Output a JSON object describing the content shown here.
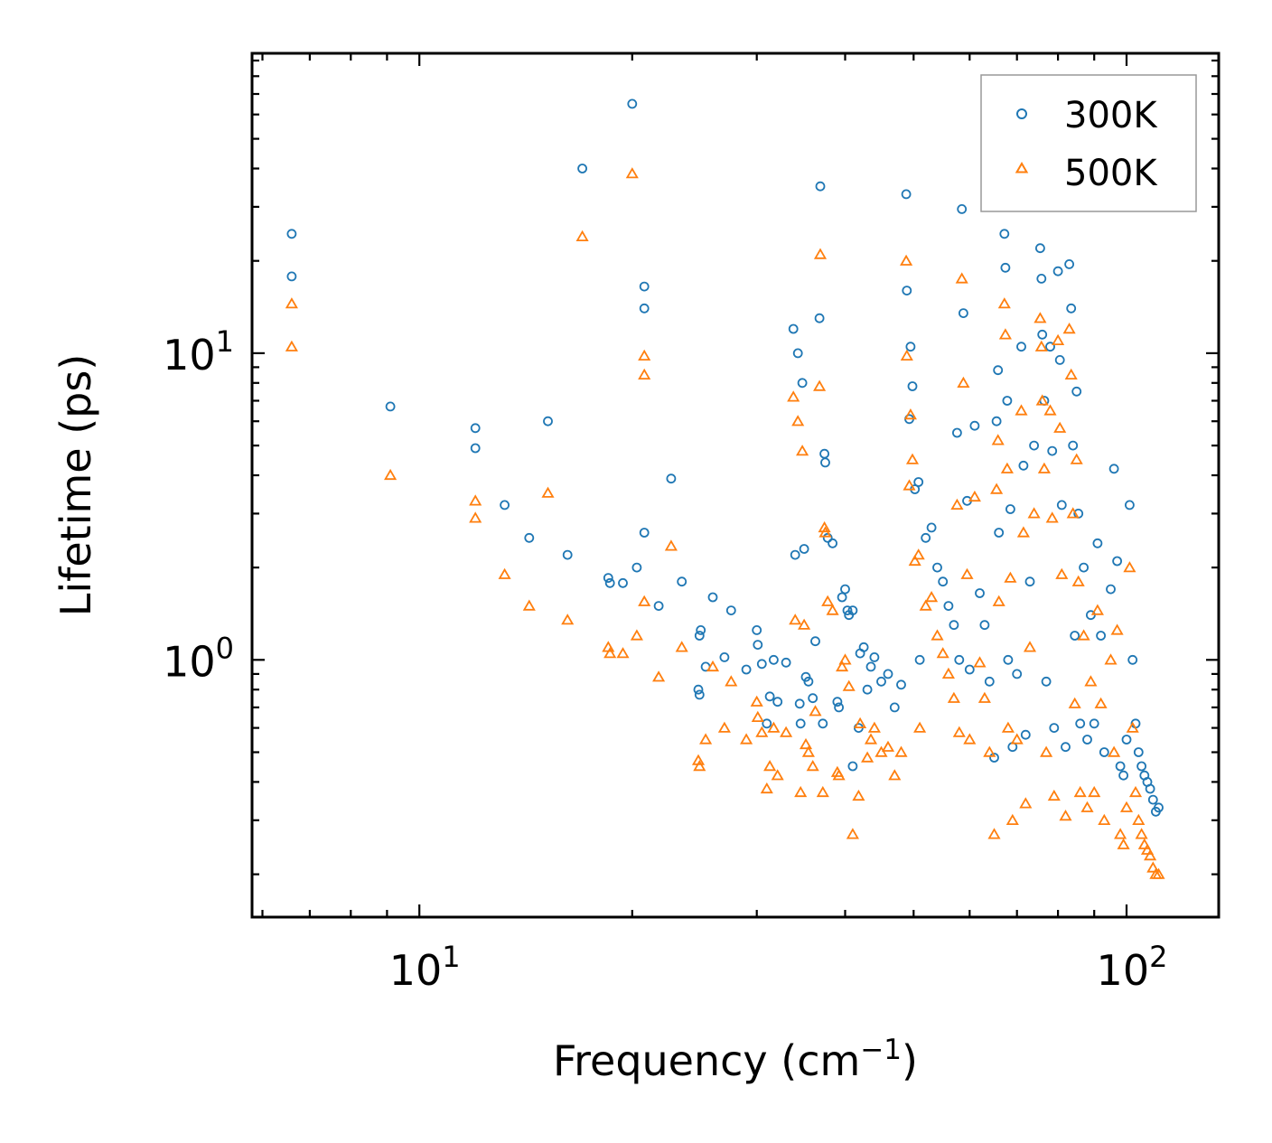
{
  "chart_data": {
    "type": "scatter",
    "xscale": "log",
    "yscale": "log",
    "xlabel": "Frequency (cm",
    "xlabel_sup": "−1",
    "xlabel_end": ")",
    "ylabel": "Lifetime (ps)",
    "xlim": [
      5.8,
      135
    ],
    "ylim": [
      0.145,
      95
    ],
    "xticks": [
      {
        "value": 10,
        "base": "10",
        "exp": "1"
      },
      {
        "value": 100,
        "base": "10",
        "exp": "2"
      }
    ],
    "yticks": [
      {
        "value": 1,
        "base": "10",
        "exp": "0"
      },
      {
        "value": 10,
        "base": "10",
        "exp": "1"
      }
    ],
    "legend": {
      "position": "top-right"
    },
    "series": [
      {
        "name": "300K",
        "marker": "circle",
        "color": "#1f77b4",
        "points": [
          [
            6.6,
            24.5
          ],
          [
            6.6,
            17.8
          ],
          [
            9.1,
            6.7
          ],
          [
            12.0,
            5.7
          ],
          [
            12.0,
            4.9
          ],
          [
            13.2,
            3.2
          ],
          [
            14.3,
            2.5
          ],
          [
            15.2,
            6.0
          ],
          [
            16.2,
            2.2
          ],
          [
            17.0,
            40.0
          ],
          [
            18.5,
            1.85
          ],
          [
            18.6,
            1.78
          ],
          [
            19.4,
            1.78
          ],
          [
            20.0,
            65.0
          ],
          [
            20.3,
            2.0
          ],
          [
            20.8,
            16.5
          ],
          [
            20.8,
            14.0
          ],
          [
            20.8,
            2.6
          ],
          [
            21.8,
            1.5
          ],
          [
            22.7,
            3.9
          ],
          [
            23.5,
            1.8
          ],
          [
            24.8,
            0.8
          ],
          [
            24.9,
            0.77
          ],
          [
            24.9,
            1.2
          ],
          [
            25.0,
            1.25
          ],
          [
            25.4,
            0.95
          ],
          [
            26.0,
            1.6
          ],
          [
            27.0,
            1.02
          ],
          [
            27.6,
            1.45
          ],
          [
            29.0,
            0.93
          ],
          [
            30.0,
            1.25
          ],
          [
            30.1,
            1.12
          ],
          [
            30.5,
            0.97
          ],
          [
            31.0,
            0.62
          ],
          [
            31.3,
            0.76
          ],
          [
            31.7,
            1.0
          ],
          [
            32.1,
            0.73
          ],
          [
            33.0,
            0.98
          ],
          [
            33.8,
            12.0
          ],
          [
            34.0,
            2.2
          ],
          [
            34.3,
            10.0
          ],
          [
            34.5,
            0.72
          ],
          [
            34.6,
            0.62
          ],
          [
            34.8,
            8.0
          ],
          [
            35.0,
            2.3
          ],
          [
            35.2,
            0.88
          ],
          [
            35.5,
            0.85
          ],
          [
            36.0,
            0.75
          ],
          [
            36.3,
            1.15
          ],
          [
            36.8,
            13.0
          ],
          [
            36.9,
            35.0
          ],
          [
            37.2,
            0.62
          ],
          [
            37.4,
            4.7
          ],
          [
            37.5,
            4.4
          ],
          [
            37.8,
            2.5
          ],
          [
            38.4,
            2.4
          ],
          [
            39.0,
            0.73
          ],
          [
            39.2,
            0.7
          ],
          [
            39.6,
            1.6
          ],
          [
            40.0,
            1.7
          ],
          [
            40.3,
            1.45
          ],
          [
            40.5,
            1.4
          ],
          [
            41.0,
            0.45
          ],
          [
            41.0,
            1.45
          ],
          [
            41.8,
            0.6
          ],
          [
            42.0,
            1.05
          ],
          [
            42.5,
            1.1
          ],
          [
            43.0,
            0.8
          ],
          [
            43.5,
            0.95
          ],
          [
            44.0,
            1.02
          ],
          [
            45.0,
            0.85
          ],
          [
            46.0,
            0.9
          ],
          [
            47.0,
            0.7
          ],
          [
            48.0,
            0.83
          ],
          [
            48.8,
            33.0
          ],
          [
            48.9,
            16.0
          ],
          [
            49.3,
            6.1
          ],
          [
            49.5,
            10.5
          ],
          [
            49.8,
            7.8
          ],
          [
            50.2,
            3.6
          ],
          [
            50.8,
            3.8
          ],
          [
            51.0,
            1.0
          ],
          [
            52.0,
            2.5
          ],
          [
            53.0,
            2.7
          ],
          [
            54.0,
            2.0
          ],
          [
            55.0,
            1.8
          ],
          [
            56.0,
            1.5
          ],
          [
            57.0,
            1.3
          ],
          [
            57.6,
            5.5
          ],
          [
            58.0,
            1.0
          ],
          [
            58.5,
            29.5
          ],
          [
            58.8,
            13.5
          ],
          [
            59.5,
            3.3
          ],
          [
            60.0,
            0.93
          ],
          [
            61.0,
            5.8
          ],
          [
            62.0,
            1.65
          ],
          [
            63.0,
            1.3
          ],
          [
            64.0,
            0.85
          ],
          [
            65.0,
            0.48
          ],
          [
            65.5,
            6.0
          ],
          [
            65.8,
            8.8
          ],
          [
            66.0,
            2.6
          ],
          [
            67.2,
            24.5
          ],
          [
            67.4,
            19.0
          ],
          [
            67.8,
            7.0
          ],
          [
            68.0,
            1.0
          ],
          [
            68.5,
            3.1
          ],
          [
            69.0,
            0.52
          ],
          [
            70.0,
            0.9
          ],
          [
            71.0,
            10.5
          ],
          [
            71.5,
            4.3
          ],
          [
            72.0,
            0.57
          ],
          [
            73.0,
            1.8
          ],
          [
            74.0,
            5.0
          ],
          [
            75.5,
            22.0
          ],
          [
            75.8,
            17.5
          ],
          [
            76.0,
            11.5
          ],
          [
            76.5,
            7.0
          ],
          [
            77.0,
            0.85
          ],
          [
            78.0,
            10.5
          ],
          [
            78.5,
            4.8
          ],
          [
            79.0,
            0.6
          ],
          [
            80.0,
            18.5
          ],
          [
            80.5,
            9.5
          ],
          [
            81.0,
            3.2
          ],
          [
            82.0,
            0.52
          ],
          [
            83.0,
            19.5
          ],
          [
            83.5,
            14.0
          ],
          [
            84.0,
            5.0
          ],
          [
            84.5,
            1.2
          ],
          [
            85.0,
            7.5
          ],
          [
            85.5,
            3.0
          ],
          [
            86.0,
            0.62
          ],
          [
            87.0,
            2.0
          ],
          [
            88.0,
            0.55
          ],
          [
            89.0,
            1.4
          ],
          [
            90.0,
            0.62
          ],
          [
            91.0,
            2.4
          ],
          [
            92.0,
            1.2
          ],
          [
            93.0,
            0.5
          ],
          [
            95.0,
            1.7
          ],
          [
            96.0,
            4.2
          ],
          [
            97.0,
            2.1
          ],
          [
            98.0,
            0.45
          ],
          [
            99.0,
            0.42
          ],
          [
            100.0,
            0.55
          ],
          [
            101.0,
            3.2
          ],
          [
            102.0,
            1.0
          ],
          [
            103.0,
            0.62
          ],
          [
            104.0,
            0.5
          ],
          [
            105.0,
            0.45
          ],
          [
            106.0,
            0.42
          ],
          [
            107.0,
            0.4
          ],
          [
            108.0,
            0.38
          ],
          [
            109.0,
            0.35
          ],
          [
            110.0,
            0.32
          ],
          [
            111.0,
            0.33
          ]
        ]
      },
      {
        "name": "500K",
        "marker": "triangle",
        "color": "#ff7f0e",
        "points": [
          [
            6.6,
            14.5
          ],
          [
            6.6,
            10.5
          ],
          [
            9.1,
            4.0
          ],
          [
            12.0,
            3.3
          ],
          [
            12.0,
            2.9
          ],
          [
            13.2,
            1.9
          ],
          [
            14.3,
            1.5
          ],
          [
            15.2,
            3.5
          ],
          [
            16.2,
            1.35
          ],
          [
            17.0,
            24.0
          ],
          [
            18.5,
            1.1
          ],
          [
            18.6,
            1.05
          ],
          [
            19.4,
            1.05
          ],
          [
            20.0,
            38.5
          ],
          [
            20.3,
            1.2
          ],
          [
            20.8,
            9.8
          ],
          [
            20.8,
            8.5
          ],
          [
            20.8,
            1.55
          ],
          [
            21.8,
            0.88
          ],
          [
            22.7,
            2.35
          ],
          [
            23.5,
            1.1
          ],
          [
            24.8,
            0.47
          ],
          [
            24.9,
            0.45
          ],
          [
            25.4,
            0.55
          ],
          [
            26.0,
            0.95
          ],
          [
            27.0,
            0.6
          ],
          [
            27.6,
            0.85
          ],
          [
            29.0,
            0.55
          ],
          [
            30.0,
            0.73
          ],
          [
            30.1,
            0.65
          ],
          [
            30.5,
            0.58
          ],
          [
            31.0,
            0.38
          ],
          [
            31.3,
            0.45
          ],
          [
            31.7,
            0.6
          ],
          [
            32.1,
            0.42
          ],
          [
            33.0,
            0.58
          ],
          [
            33.8,
            7.2
          ],
          [
            34.0,
            1.35
          ],
          [
            34.3,
            6.0
          ],
          [
            34.6,
            0.37
          ],
          [
            34.8,
            4.8
          ],
          [
            35.0,
            1.3
          ],
          [
            35.2,
            0.53
          ],
          [
            35.5,
            0.5
          ],
          [
            36.0,
            0.45
          ],
          [
            36.3,
            0.68
          ],
          [
            36.8,
            7.8
          ],
          [
            36.9,
            21.0
          ],
          [
            37.2,
            0.37
          ],
          [
            37.4,
            2.7
          ],
          [
            37.5,
            2.6
          ],
          [
            37.8,
            1.55
          ],
          [
            38.4,
            1.45
          ],
          [
            39.0,
            0.43
          ],
          [
            39.2,
            0.42
          ],
          [
            39.6,
            0.95
          ],
          [
            40.0,
            1.0
          ],
          [
            40.5,
            0.82
          ],
          [
            41.0,
            0.27
          ],
          [
            41.8,
            0.36
          ],
          [
            42.0,
            0.62
          ],
          [
            43.0,
            0.48
          ],
          [
            43.5,
            0.55
          ],
          [
            44.0,
            0.6
          ],
          [
            45.0,
            0.5
          ],
          [
            46.0,
            0.52
          ],
          [
            47.0,
            0.42
          ],
          [
            48.0,
            0.5
          ],
          [
            48.8,
            20.0
          ],
          [
            48.9,
            9.8
          ],
          [
            49.3,
            3.7
          ],
          [
            49.5,
            6.3
          ],
          [
            49.8,
            4.5
          ],
          [
            50.2,
            2.1
          ],
          [
            50.8,
            2.2
          ],
          [
            51.0,
            0.6
          ],
          [
            52.0,
            1.5
          ],
          [
            53.0,
            1.6
          ],
          [
            54.0,
            1.2
          ],
          [
            55.0,
            1.05
          ],
          [
            56.0,
            0.9
          ],
          [
            57.0,
            0.75
          ],
          [
            57.6,
            3.2
          ],
          [
            58.0,
            0.58
          ],
          [
            58.5,
            17.5
          ],
          [
            58.8,
            8.0
          ],
          [
            59.5,
            1.9
          ],
          [
            60.0,
            0.55
          ],
          [
            61.0,
            3.4
          ],
          [
            62.0,
            0.98
          ],
          [
            63.0,
            0.75
          ],
          [
            64.0,
            0.5
          ],
          [
            65.0,
            0.27
          ],
          [
            65.5,
            3.6
          ],
          [
            65.8,
            5.2
          ],
          [
            66.0,
            1.55
          ],
          [
            67.2,
            14.5
          ],
          [
            67.4,
            11.5
          ],
          [
            67.8,
            4.2
          ],
          [
            68.0,
            0.6
          ],
          [
            68.5,
            1.85
          ],
          [
            69.0,
            0.3
          ],
          [
            70.0,
            0.55
          ],
          [
            71.0,
            6.5
          ],
          [
            71.5,
            2.6
          ],
          [
            72.0,
            0.34
          ],
          [
            73.0,
            1.1
          ],
          [
            74.0,
            3.0
          ],
          [
            75.5,
            13.0
          ],
          [
            75.8,
            10.5
          ],
          [
            76.0,
            7.0
          ],
          [
            76.5,
            4.2
          ],
          [
            77.0,
            0.5
          ],
          [
            78.0,
            6.5
          ],
          [
            78.5,
            2.9
          ],
          [
            79.0,
            0.36
          ],
          [
            80.0,
            11.0
          ],
          [
            80.5,
            5.7
          ],
          [
            81.0,
            1.9
          ],
          [
            82.0,
            0.31
          ],
          [
            83.0,
            12.0
          ],
          [
            83.5,
            8.5
          ],
          [
            84.0,
            3.0
          ],
          [
            84.5,
            0.72
          ],
          [
            85.0,
            4.5
          ],
          [
            85.5,
            1.8
          ],
          [
            86.0,
            0.37
          ],
          [
            87.0,
            1.2
          ],
          [
            88.0,
            0.33
          ],
          [
            89.0,
            0.85
          ],
          [
            90.0,
            0.37
          ],
          [
            91.0,
            1.45
          ],
          [
            92.0,
            0.72
          ],
          [
            93.0,
            0.3
          ],
          [
            95.0,
            1.0
          ],
          [
            96.0,
            0.5
          ],
          [
            97.0,
            1.25
          ],
          [
            98.0,
            0.27
          ],
          [
            99.0,
            0.25
          ],
          [
            100.0,
            0.33
          ],
          [
            101.0,
            2.0
          ],
          [
            102.0,
            0.6
          ],
          [
            103.0,
            0.37
          ],
          [
            104.0,
            0.3
          ],
          [
            105.0,
            0.27
          ],
          [
            106.0,
            0.25
          ],
          [
            107.0,
            0.24
          ],
          [
            108.0,
            0.23
          ],
          [
            109.0,
            0.21
          ],
          [
            110.0,
            0.2
          ],
          [
            111.0,
            0.2
          ]
        ]
      }
    ]
  }
}
